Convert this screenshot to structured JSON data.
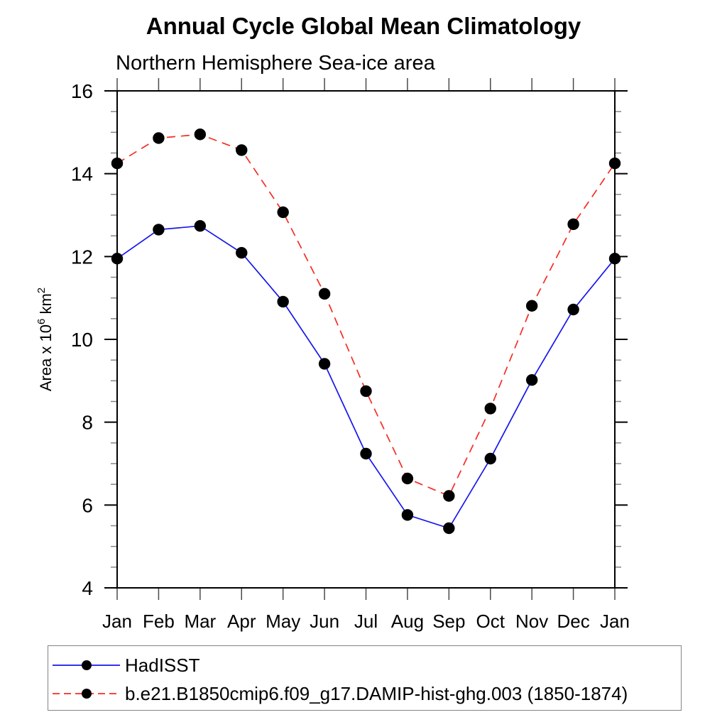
{
  "chart_data": {
    "type": "line",
    "title": "Annual Cycle Global Mean Climatology",
    "subtitle": "Northern Hemisphere Sea-ice area",
    "ylabel": "Area x 10⁶ km²",
    "ylabel_segments": [
      {
        "text": "Area x 10",
        "sup": false
      },
      {
        "text": "6",
        "sup": true
      },
      {
        "text": " km",
        "sup": false
      },
      {
        "text": "2",
        "sup": true
      }
    ],
    "categories": [
      "Jan",
      "Feb",
      "Mar",
      "Apr",
      "May",
      "Jun",
      "Jul",
      "Aug",
      "Sep",
      "Oct",
      "Nov",
      "Dec",
      "Jan"
    ],
    "series": [
      {
        "name": "HadISST",
        "color": "#1515ee",
        "line_style": "solid",
        "marker": "filled-circle",
        "marker_color": "#000000",
        "values": [
          11.95,
          12.65,
          12.74,
          12.09,
          10.91,
          9.41,
          7.24,
          5.76,
          5.44,
          7.12,
          9.02,
          10.72,
          11.95
        ]
      },
      {
        "name": "b.e21.B1850cmip6.f09_g17.DAMIP-hist-ghg.003 (1850-1874)",
        "color": "#f52c24",
        "line_style": "dashed",
        "marker": "filled-circle",
        "marker_color": "#000000",
        "values": [
          14.25,
          14.86,
          14.95,
          14.57,
          13.07,
          11.1,
          8.75,
          6.64,
          6.22,
          8.33,
          10.81,
          12.78,
          14.25
        ]
      }
    ],
    "ylim": [
      4,
      16
    ],
    "ytick_major": [
      4,
      6,
      8,
      10,
      12,
      14,
      16
    ],
    "ytick_minor_step": 0.5,
    "xlabel": "",
    "grid": false,
    "legend_position": "boxed-below-plot",
    "axis_color": "#000000",
    "minor_tick_color": "#858585",
    "month_tick_color": "#4a4a4a"
  }
}
